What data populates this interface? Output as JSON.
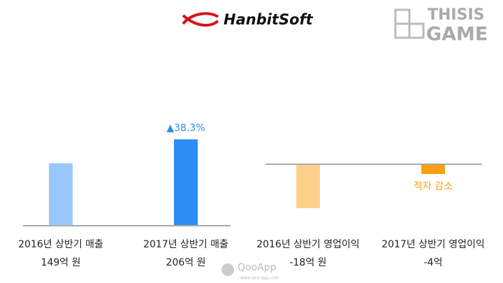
{
  "branding": {
    "logo": "HanbitSoft",
    "watermark_top": [
      "THISIS",
      "GAME"
    ],
    "watermark_bottom": "QooApp",
    "watermark_url": "www.qoo-app.com"
  },
  "chart_data": [
    {
      "type": "bar",
      "categories": [
        "2016년 상반기 매출",
        "2017년 상반기 매출"
      ],
      "values": [
        149,
        206
      ],
      "value_labels": [
        "149억 원",
        "206억 원"
      ],
      "colors": [
        "#99c7fb",
        "#2d8cf5"
      ],
      "annotation": "▲38.3%",
      "annotation_color": "#2d8cf5"
    },
    {
      "type": "bar",
      "categories": [
        "2016년 상반기 영업이익",
        "2017년 상반기 영업이익"
      ],
      "values": [
        -18,
        -4
      ],
      "value_labels": [
        "-18억 원",
        "-4억"
      ],
      "colors": [
        "#fdd08a",
        "#fd9e0d"
      ],
      "annotation": "적자 감소",
      "annotation_color": "#fd9e0d"
    }
  ]
}
